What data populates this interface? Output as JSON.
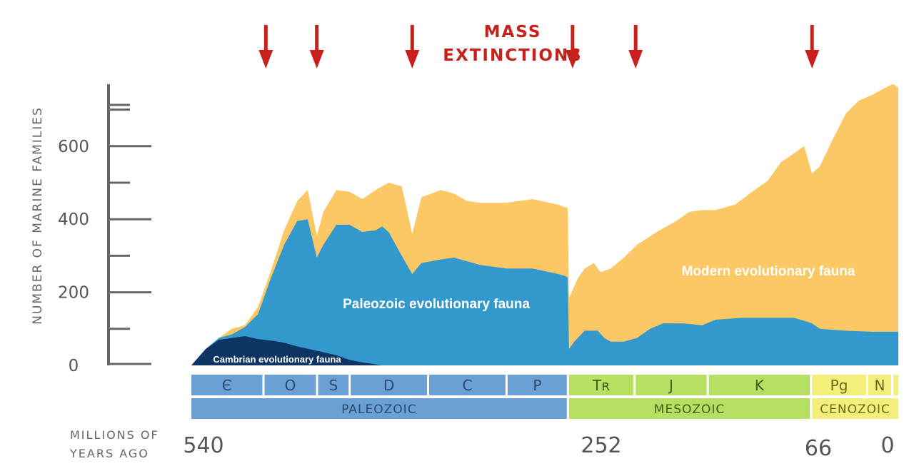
{
  "chart_data": {
    "type": "area",
    "title_lines": [
      "MASS",
      "EXTINCTIONS"
    ],
    "ylabel": "NUMBER OF MARINE FAMILIES",
    "xlabel_lines": [
      "MILLIONS OF",
      "YEARS AGO"
    ],
    "y_ticks": [
      "600",
      "400",
      "200",
      "0"
    ],
    "y_tick_values": [
      600,
      400,
      200,
      0
    ],
    "ylim": [
      0,
      780
    ],
    "x_ticks": [
      {
        "label": "540",
        "value": 540
      },
      {
        "label": "252",
        "value": 252
      },
      {
        "label": "66",
        "value": 66
      },
      {
        "label": "0",
        "value": 0
      }
    ],
    "xlim": [
      540,
      0
    ],
    "mass_extinctions_mya": [
      484,
      445,
      372,
      252,
      201,
      66
    ],
    "series": [
      {
        "name": "Cambrian evolutionary fauna",
        "color": "#0d3563",
        "cumulative_top": [
          [
            541,
            0
          ],
          [
            530,
            45
          ],
          [
            520,
            70
          ],
          [
            510,
            75
          ],
          [
            500,
            80
          ],
          [
            490,
            72
          ],
          [
            480,
            68
          ],
          [
            470,
            62
          ],
          [
            460,
            52
          ],
          [
            445,
            40
          ],
          [
            430,
            28
          ],
          [
            420,
            15
          ],
          [
            410,
            8
          ],
          [
            400,
            3
          ],
          [
            395,
            0
          ]
        ]
      },
      {
        "name": "Paleozoic evolutionary fauna",
        "color": "#3399cc",
        "cumulative_top": [
          [
            541,
            0
          ],
          [
            530,
            45
          ],
          [
            520,
            75
          ],
          [
            510,
            85
          ],
          [
            500,
            105
          ],
          [
            490,
            140
          ],
          [
            480,
            240
          ],
          [
            470,
            330
          ],
          [
            460,
            395
          ],
          [
            452,
            400
          ],
          [
            445,
            295
          ],
          [
            440,
            330
          ],
          [
            430,
            385
          ],
          [
            420,
            385
          ],
          [
            410,
            365
          ],
          [
            400,
            370
          ],
          [
            395,
            380
          ],
          [
            390,
            365
          ],
          [
            380,
            300
          ],
          [
            372,
            250
          ],
          [
            365,
            280
          ],
          [
            350,
            290
          ],
          [
            340,
            295
          ],
          [
            320,
            275
          ],
          [
            300,
            265
          ],
          [
            280,
            265
          ],
          [
            260,
            250
          ],
          [
            255,
            245
          ],
          [
            253,
            240
          ],
          [
            252,
            45
          ],
          [
            248,
            65
          ],
          [
            240,
            95
          ],
          [
            230,
            95
          ],
          [
            225,
            75
          ],
          [
            220,
            65
          ],
          [
            210,
            65
          ],
          [
            200,
            75
          ],
          [
            190,
            100
          ],
          [
            180,
            115
          ],
          [
            165,
            115
          ],
          [
            150,
            110
          ],
          [
            140,
            125
          ],
          [
            120,
            130
          ],
          [
            100,
            130
          ],
          [
            80,
            130
          ],
          [
            70,
            120
          ],
          [
            66,
            115
          ],
          [
            60,
            100
          ],
          [
            40,
            95
          ],
          [
            20,
            92
          ],
          [
            0,
            92
          ]
        ]
      },
      {
        "name": "Modern evolutionary fauna",
        "color": "#fcc865",
        "cumulative_top": [
          [
            541,
            0
          ],
          [
            530,
            45
          ],
          [
            520,
            75
          ],
          [
            510,
            100
          ],
          [
            500,
            110
          ],
          [
            490,
            160
          ],
          [
            480,
            260
          ],
          [
            470,
            370
          ],
          [
            460,
            450
          ],
          [
            452,
            480
          ],
          [
            445,
            355
          ],
          [
            440,
            420
          ],
          [
            430,
            480
          ],
          [
            420,
            475
          ],
          [
            410,
            455
          ],
          [
            400,
            480
          ],
          [
            390,
            500
          ],
          [
            380,
            490
          ],
          [
            372,
            360
          ],
          [
            365,
            460
          ],
          [
            350,
            480
          ],
          [
            340,
            470
          ],
          [
            330,
            450
          ],
          [
            320,
            445
          ],
          [
            300,
            445
          ],
          [
            280,
            455
          ],
          [
            260,
            440
          ],
          [
            253,
            430
          ],
          [
            252,
            185
          ],
          [
            245,
            240
          ],
          [
            240,
            265
          ],
          [
            233,
            280
          ],
          [
            228,
            255
          ],
          [
            220,
            265
          ],
          [
            210,
            295
          ],
          [
            200,
            330
          ],
          [
            185,
            365
          ],
          [
            170,
            395
          ],
          [
            160,
            420
          ],
          [
            150,
            425
          ],
          [
            140,
            425
          ],
          [
            125,
            440
          ],
          [
            110,
            480
          ],
          [
            100,
            505
          ],
          [
            90,
            555
          ],
          [
            80,
            580
          ],
          [
            72,
            600
          ],
          [
            66,
            525
          ],
          [
            60,
            545
          ],
          [
            50,
            620
          ],
          [
            40,
            690
          ],
          [
            30,
            725
          ],
          [
            20,
            740
          ],
          [
            10,
            760
          ],
          [
            4,
            770
          ],
          [
            0,
            760
          ]
        ]
      }
    ],
    "series_labels": [
      {
        "text": "Cambrian evolutionary fauna",
        "size": 13
      },
      {
        "text": "Paleozoic evolutionary fauna",
        "size": 19
      },
      {
        "text": "Modern evolutionary fauna",
        "size": 19
      }
    ],
    "periods": [
      {
        "label": "Є",
        "start": 541,
        "end": 485,
        "era": "paleozoic"
      },
      {
        "label": "O",
        "start": 485,
        "end": 444,
        "era": "paleozoic"
      },
      {
        "label": "S",
        "start": 444,
        "end": 419,
        "era": "paleozoic"
      },
      {
        "label": "D",
        "start": 419,
        "end": 359,
        "era": "paleozoic"
      },
      {
        "label": "C",
        "start": 359,
        "end": 299,
        "era": "paleozoic"
      },
      {
        "label": "P",
        "start": 299,
        "end": 252,
        "era": "paleozoic"
      },
      {
        "label": "Tʀ",
        "start": 252,
        "end": 201,
        "era": "mesozoic"
      },
      {
        "label": "J",
        "start": 201,
        "end": 145,
        "era": "mesozoic"
      },
      {
        "label": "K",
        "start": 145,
        "end": 66,
        "era": "mesozoic"
      },
      {
        "label": "Pg",
        "start": 66,
        "end": 23,
        "era": "cenozoic"
      },
      {
        "label": "N",
        "start": 23,
        "end": 2.6,
        "era": "cenozoic"
      }
    ],
    "eras": [
      {
        "label": "PALEOZOIC",
        "start": 541,
        "end": 252,
        "key": "paleozoic"
      },
      {
        "label": "MESOZOIC",
        "start": 252,
        "end": 66,
        "key": "mesozoic"
      },
      {
        "label": "CENOZOIC",
        "start": 66,
        "end": 0,
        "key": "cenozoic"
      }
    ],
    "colors": {
      "arrow": "#c8201a",
      "title": "#c8201a",
      "axis": "#666666",
      "paleozoic_bar": "#6aa0d3",
      "paleozoic_text": "#2a4a6e",
      "mesozoic_bar": "#b7e063",
      "mesozoic_text": "#3d5d14",
      "cenozoic_bar": "#f3ef7a",
      "cenozoic_text": "#6b6a1a"
    }
  }
}
